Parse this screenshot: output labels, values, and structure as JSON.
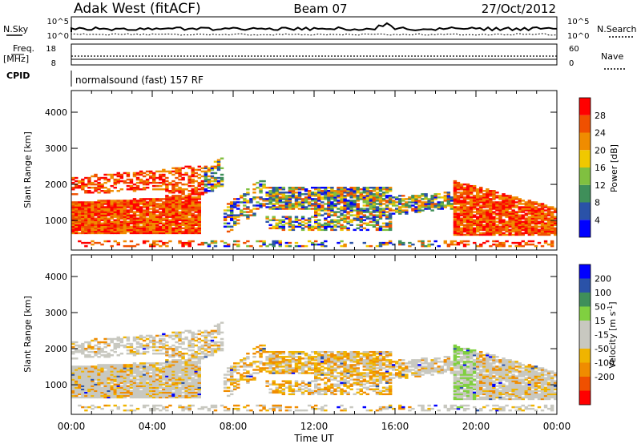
{
  "header": {
    "station": "Adak West (fitACF)",
    "beam": "Beam 07",
    "date": "27/Oct/2012"
  },
  "strips": {
    "nsky_label": "N.Sky",
    "nsearch_label": "N.Search",
    "nsky_ticks": [
      "10^5",
      "10^0"
    ],
    "nsearch_ticks": [
      "10^5",
      "10^0"
    ],
    "freq_label": "Freq.",
    "freq_unit": "[MHz]",
    "freq_ticks": [
      "18",
      "8"
    ],
    "nave_label": "Nave",
    "nave_ticks": [
      "60",
      "0"
    ],
    "cpid_label": "CPID",
    "cpid_value": "normalsound (fast) 157 RF"
  },
  "colors": {
    "power_scale": [
      "#0000ff",
      "#2a52a8",
      "#3f8f5a",
      "#80c040",
      "#f0c800",
      "#f08c00",
      "#f05000",
      "#ff0000"
    ],
    "velocity_scale": [
      "#ff0000",
      "#f05000",
      "#f08c00",
      "#f0b400",
      "#c8c8c0",
      "#c8c8c0",
      "#80d040",
      "#3f8f5a",
      "#2a52a8",
      "#0000ff"
    ]
  },
  "chart_data": [
    {
      "type": "heatmap",
      "panel": "power",
      "ylabel": "Slant Range [km]",
      "yticks": [
        "1000",
        "2000",
        "3000",
        "4000"
      ],
      "ylim": [
        180,
        4600
      ],
      "xlim": [
        0,
        24
      ],
      "xticks": [
        "00:00",
        "04:00",
        "08:00",
        "12:00",
        "16:00",
        "20:00",
        "00:00"
      ],
      "colorbar_label": "Power [dB]",
      "colorbar_ticks": [
        "4",
        "8",
        "12",
        "16",
        "20",
        "24",
        "28"
      ],
      "colorbar_range": [
        0,
        32
      ]
    },
    {
      "type": "heatmap",
      "panel": "velocity",
      "ylabel": "Slant Range [km]",
      "yticks": [
        "1000",
        "2000",
        "3000",
        "4000"
      ],
      "ylim": [
        180,
        4600
      ],
      "xlim": [
        0,
        24
      ],
      "xticks": [
        "00:00",
        "04:00",
        "08:00",
        "12:00",
        "16:00",
        "20:00",
        "00:00"
      ],
      "xlabel": "Time UT",
      "colorbar_label": "Velocity [m s^-1]",
      "colorbar_ticks": [
        "200",
        "100",
        "50",
        "15",
        "-15",
        "-50",
        "-100",
        "-200"
      ]
    }
  ]
}
